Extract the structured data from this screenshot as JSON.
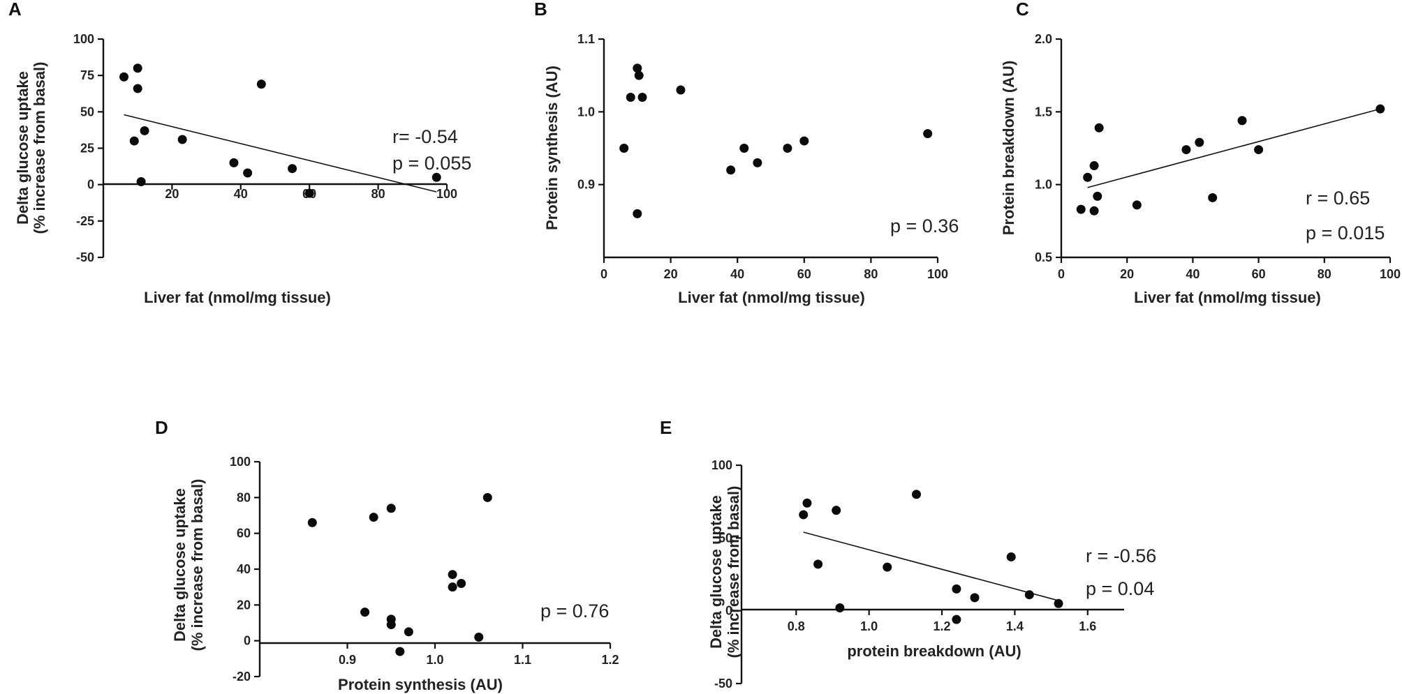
{
  "chart_data": [
    {
      "letter": "A",
      "type": "scatter",
      "xlabel": "Liver fat (nmol/mg tissue)",
      "ylabel": [
        "Delta glucose uptake",
        "(% increase from basal)"
      ],
      "xlim": [
        0,
        100
      ],
      "ylim": [
        -50,
        100
      ],
      "xticks": [
        {
          "v": 20,
          "t": "20"
        },
        {
          "v": 40,
          "t": "40"
        },
        {
          "v": 60,
          "t": "60"
        },
        {
          "v": 80,
          "t": "80"
        },
        {
          "v": 100,
          "t": "100"
        }
      ],
      "yticks": [
        {
          "v": 100,
          "t": "100"
        },
        {
          "v": 75,
          "t": "75"
        },
        {
          "v": 50,
          "t": "50"
        },
        {
          "v": 25,
          "t": "25"
        },
        {
          "v": 0,
          "t": "0"
        },
        {
          "v": -25,
          "t": "-25"
        },
        {
          "v": -50,
          "t": "-50"
        }
      ],
      "points": [
        [
          6,
          74
        ],
        [
          10,
          80
        ],
        [
          10,
          66
        ],
        [
          12,
          37
        ],
        [
          9,
          30
        ],
        [
          11,
          2
        ],
        [
          23,
          31
        ],
        [
          38,
          15
        ],
        [
          42,
          8
        ],
        [
          46,
          69
        ],
        [
          55,
          11
        ],
        [
          60,
          -6
        ],
        [
          97,
          5
        ]
      ],
      "fit": [
        [
          6,
          48
        ],
        [
          97,
          -5
        ]
      ],
      "stats": [
        "r= -0.54",
        "p = 0.055"
      ]
    },
    {
      "letter": "B",
      "type": "scatter",
      "xlabel": "Liver fat (nmol/mg tissue)",
      "ylabel": [
        "Protein synthesis (AU)"
      ],
      "xlim": [
        0,
        100
      ],
      "ylim": [
        0.8,
        1.1
      ],
      "xticks": [
        {
          "v": 0,
          "t": "0"
        },
        {
          "v": 20,
          "t": "20"
        },
        {
          "v": 40,
          "t": "40"
        },
        {
          "v": 60,
          "t": "60"
        },
        {
          "v": 80,
          "t": "80"
        },
        {
          "v": 100,
          "t": "100"
        }
      ],
      "yticks": [
        {
          "v": 1.1,
          "t": "1.1"
        },
        {
          "v": 1.0,
          "t": "1.0"
        },
        {
          "v": 0.9,
          "t": "0.9"
        }
      ],
      "points": [
        [
          10,
          1.06
        ],
        [
          10.5,
          1.05
        ],
        [
          8,
          1.02
        ],
        [
          11.5,
          1.02
        ],
        [
          23,
          1.03
        ],
        [
          6,
          0.95
        ],
        [
          10,
          0.86
        ],
        [
          38,
          0.92
        ],
        [
          42,
          0.95
        ],
        [
          46,
          0.93
        ],
        [
          55,
          0.95
        ],
        [
          60,
          0.96
        ],
        [
          97,
          0.97
        ]
      ],
      "fit": null,
      "stats": [
        "p = 0.36"
      ]
    },
    {
      "letter": "C",
      "type": "scatter",
      "xlabel": "Liver fat (nmol/mg tissue)",
      "ylabel": [
        "Protein breakdown (AU)"
      ],
      "xlim": [
        0,
        100
      ],
      "ylim": [
        0.5,
        2.0
      ],
      "xticks": [
        {
          "v": 0,
          "t": "0"
        },
        {
          "v": 20,
          "t": "20"
        },
        {
          "v": 40,
          "t": "40"
        },
        {
          "v": 60,
          "t": "60"
        },
        {
          "v": 80,
          "t": "80"
        },
        {
          "v": 100,
          "t": "100"
        }
      ],
      "yticks": [
        {
          "v": 2.0,
          "t": "2.0"
        },
        {
          "v": 1.5,
          "t": "1.5"
        },
        {
          "v": 1.0,
          "t": "1.0"
        },
        {
          "v": 0.5,
          "t": "0.5"
        }
      ],
      "points": [
        [
          6,
          0.83
        ],
        [
          8,
          1.05
        ],
        [
          10,
          1.13
        ],
        [
          10,
          0.82
        ],
        [
          11,
          0.92
        ],
        [
          11.5,
          1.39
        ],
        [
          23,
          0.86
        ],
        [
          38,
          1.24
        ],
        [
          42,
          1.29
        ],
        [
          46,
          0.91
        ],
        [
          55,
          1.44
        ],
        [
          60,
          1.24
        ],
        [
          97,
          1.52
        ]
      ],
      "fit": [
        [
          8,
          0.98
        ],
        [
          97,
          1.52
        ]
      ],
      "stats": [
        "r = 0.65",
        "p = 0.015"
      ]
    },
    {
      "letter": "D",
      "type": "scatter",
      "xlabel": "Protein synthesis (AU)",
      "ylabel": [
        "Delta glucose uptake",
        "(% increase from basal)"
      ],
      "xlim": [
        0.8,
        1.2
      ],
      "ylim": [
        -20,
        100
      ],
      "xticks": [
        {
          "v": 0.9,
          "t": "0.9"
        },
        {
          "v": 1.0,
          "t": "1.0"
        },
        {
          "v": 1.1,
          "t": "1.1"
        },
        {
          "v": 1.2,
          "t": "1.2"
        }
      ],
      "yticks": [
        {
          "v": 100,
          "t": "100"
        },
        {
          "v": 80,
          "t": "80"
        },
        {
          "v": 60,
          "t": "60"
        },
        {
          "v": 40,
          "t": "40"
        },
        {
          "v": 20,
          "t": "20"
        },
        {
          "v": 0,
          "t": "0"
        },
        {
          "v": -20,
          "t": "-20"
        }
      ],
      "points": [
        [
          0.86,
          66
        ],
        [
          0.93,
          69
        ],
        [
          0.95,
          74
        ],
        [
          1.06,
          80
        ],
        [
          1.02,
          37
        ],
        [
          1.02,
          30
        ],
        [
          1.03,
          32
        ],
        [
          0.92,
          16
        ],
        [
          0.95,
          12
        ],
        [
          0.95,
          9
        ],
        [
          0.97,
          5
        ],
        [
          0.96,
          -6
        ],
        [
          1.05,
          2
        ]
      ],
      "fit": null,
      "stats": [
        "p = 0.76"
      ]
    },
    {
      "letter": "E",
      "type": "scatter",
      "xlabel": "protein breakdown (AU)",
      "ylabel": [
        "Delta glucose uptake",
        "(% increase from basal)"
      ],
      "xlim": [
        0.65,
        1.7
      ],
      "ylim": [
        -50,
        100
      ],
      "xticks": [
        {
          "v": 0.8,
          "t": "0.8"
        },
        {
          "v": 1.0,
          "t": "1.0"
        },
        {
          "v": 1.2,
          "t": "1.2"
        },
        {
          "v": 1.4,
          "t": "1.4"
        },
        {
          "v": 1.6,
          "t": "1.6"
        }
      ],
      "yticks": [
        {
          "v": 100,
          "t": "100"
        },
        {
          "v": 50,
          "t": "50"
        },
        {
          "v": 0,
          "t": "0"
        },
        {
          "v": -50,
          "t": "-50"
        }
      ],
      "points": [
        [
          0.82,
          66
        ],
        [
          0.83,
          74
        ],
        [
          0.91,
          69
        ],
        [
          1.13,
          80
        ],
        [
          0.86,
          32
        ],
        [
          1.05,
          30
        ],
        [
          0.92,
          2
        ],
        [
          1.24,
          15
        ],
        [
          1.29,
          9
        ],
        [
          1.24,
          -6
        ],
        [
          1.39,
          37
        ],
        [
          1.44,
          11
        ],
        [
          1.52,
          5
        ]
      ],
      "fit": [
        [
          0.82,
          54
        ],
        [
          1.52,
          7
        ]
      ],
      "stats": [
        "r = -0.56",
        "p = 0.04"
      ]
    }
  ]
}
